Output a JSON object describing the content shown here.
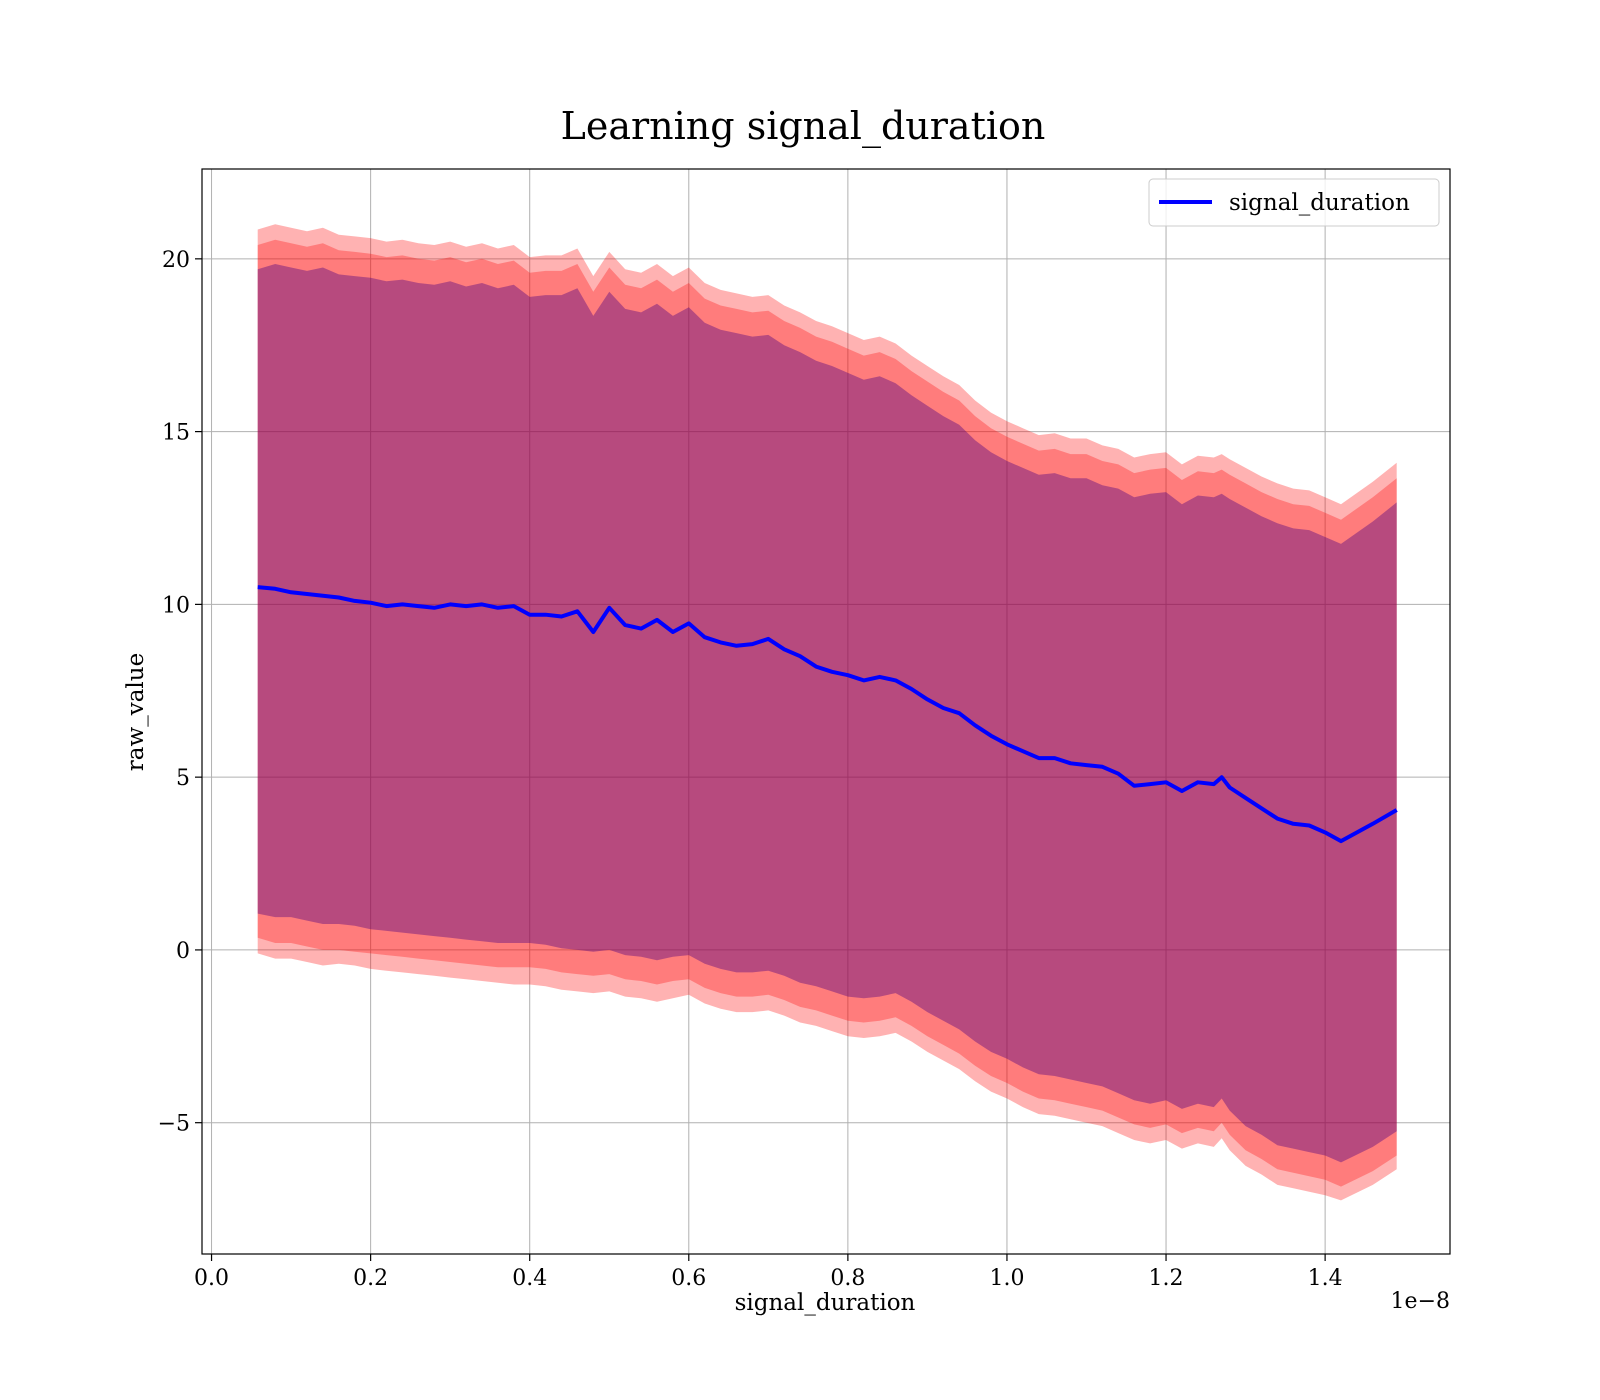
{
  "chart_data": {
    "type": "line",
    "title": "Learning signal_duration",
    "xlabel": "signal_duration",
    "ylabel": "raw_value",
    "x_offset_text": "1e−8",
    "x_ticks": [
      0.0,
      0.2,
      0.4,
      0.6,
      0.8,
      1.0,
      1.2,
      1.4
    ],
    "x_tick_labels": [
      "0.0",
      "0.2",
      "0.4",
      "0.6",
      "0.8",
      "1.0",
      "1.2",
      "1.4"
    ],
    "y_ticks": [
      -5,
      0,
      5,
      10,
      15,
      20
    ],
    "y_tick_labels": [
      "−5",
      "0",
      "5",
      "10",
      "15",
      "20"
    ],
    "xlim": [
      -0.012,
      1.557
    ],
    "ylim": [
      -8.8,
      22.6
    ],
    "grid": true,
    "legend": {
      "position": "top-right",
      "entries": [
        "signal_duration"
      ]
    },
    "series": [
      {
        "name": "signal_duration",
        "color": "#0000ff",
        "x": [
          0.058,
          0.08,
          0.1,
          0.12,
          0.14,
          0.16,
          0.18,
          0.2,
          0.22,
          0.24,
          0.26,
          0.28,
          0.3,
          0.32,
          0.34,
          0.36,
          0.38,
          0.4,
          0.42,
          0.44,
          0.46,
          0.48,
          0.5,
          0.52,
          0.54,
          0.56,
          0.58,
          0.6,
          0.62,
          0.64,
          0.66,
          0.68,
          0.7,
          0.72,
          0.74,
          0.76,
          0.78,
          0.8,
          0.82,
          0.84,
          0.86,
          0.88,
          0.9,
          0.92,
          0.94,
          0.96,
          0.98,
          1.0,
          1.02,
          1.04,
          1.06,
          1.08,
          1.1,
          1.12,
          1.14,
          1.16,
          1.18,
          1.2,
          1.22,
          1.24,
          1.26,
          1.27,
          1.28,
          1.3,
          1.32,
          1.34,
          1.36,
          1.38,
          1.4,
          1.42,
          1.46,
          1.49
        ],
        "y": [
          10.5,
          10.45,
          10.35,
          10.3,
          10.25,
          10.2,
          10.1,
          10.05,
          9.95,
          10.0,
          9.95,
          9.9,
          10.0,
          9.95,
          10.0,
          9.9,
          9.95,
          9.7,
          9.7,
          9.65,
          9.8,
          9.2,
          9.9,
          9.4,
          9.3,
          9.55,
          9.2,
          9.45,
          9.05,
          8.9,
          8.8,
          8.85,
          9.0,
          8.7,
          8.5,
          8.2,
          8.05,
          7.95,
          7.8,
          7.9,
          7.8,
          7.55,
          7.25,
          7.0,
          6.85,
          6.5,
          6.2,
          5.95,
          5.75,
          5.55,
          5.55,
          5.4,
          5.35,
          5.3,
          5.1,
          4.75,
          4.8,
          4.85,
          4.6,
          4.85,
          4.8,
          5.0,
          4.7,
          4.4,
          4.1,
          3.8,
          3.65,
          3.6,
          3.4,
          3.15,
          3.65,
          4.05
        ]
      }
    ],
    "bands": [
      {
        "color": "#ff0000",
        "opacity": 0.3,
        "lower": [
          -0.1,
          -0.25,
          -0.25,
          -0.35,
          -0.45,
          -0.4,
          -0.45,
          -0.55,
          -0.6,
          -0.65,
          -0.7,
          -0.75,
          -0.8,
          -0.85,
          -0.9,
          -0.95,
          -1.0,
          -1.0,
          -1.05,
          -1.15,
          -1.2,
          -1.25,
          -1.2,
          -1.35,
          -1.4,
          -1.5,
          -1.4,
          -1.3,
          -1.55,
          -1.7,
          -1.8,
          -1.8,
          -1.75,
          -1.9,
          -2.1,
          -2.2,
          -2.35,
          -2.5,
          -2.55,
          -2.5,
          -2.4,
          -2.65,
          -2.95,
          -3.2,
          -3.45,
          -3.8,
          -4.1,
          -4.3,
          -4.55,
          -4.75,
          -4.8,
          -4.9,
          -5.0,
          -5.1,
          -5.3,
          -5.5,
          -5.6,
          -5.5,
          -5.75,
          -5.6,
          -5.7,
          -5.45,
          -5.8,
          -6.25,
          -6.5,
          -6.8,
          -6.9,
          -7.0,
          -7.1,
          -7.25,
          -6.8,
          -6.35
        ],
        "upper": [
          20.85,
          21.0,
          20.9,
          20.8,
          20.9,
          20.7,
          20.65,
          20.6,
          20.5,
          20.55,
          20.45,
          20.4,
          20.5,
          20.35,
          20.45,
          20.3,
          20.4,
          20.05,
          20.1,
          20.1,
          20.3,
          19.5,
          20.2,
          19.7,
          19.6,
          19.85,
          19.5,
          19.75,
          19.3,
          19.1,
          19.0,
          18.9,
          18.95,
          18.65,
          18.45,
          18.2,
          18.05,
          17.85,
          17.65,
          17.75,
          17.55,
          17.2,
          16.9,
          16.6,
          16.35,
          15.9,
          15.55,
          15.3,
          15.1,
          14.9,
          14.95,
          14.8,
          14.8,
          14.6,
          14.5,
          14.25,
          14.35,
          14.4,
          14.05,
          14.3,
          14.25,
          14.35,
          14.2,
          13.95,
          13.7,
          13.5,
          13.35,
          13.3,
          13.1,
          12.9,
          13.55,
          14.1
        ]
      },
      {
        "color": "#ff0000",
        "opacity": 0.3,
        "lower": [
          0.35,
          0.2,
          0.2,
          0.1,
          0.0,
          0.0,
          -0.05,
          -0.1,
          -0.15,
          -0.2,
          -0.25,
          -0.3,
          -0.35,
          -0.4,
          -0.45,
          -0.5,
          -0.5,
          -0.5,
          -0.55,
          -0.65,
          -0.7,
          -0.75,
          -0.7,
          -0.85,
          -0.9,
          -1.0,
          -0.9,
          -0.85,
          -1.1,
          -1.25,
          -1.35,
          -1.35,
          -1.3,
          -1.45,
          -1.65,
          -1.75,
          -1.9,
          -2.05,
          -2.1,
          -2.05,
          -1.95,
          -2.2,
          -2.5,
          -2.75,
          -3.0,
          -3.35,
          -3.65,
          -3.85,
          -4.1,
          -4.3,
          -4.35,
          -4.45,
          -4.55,
          -4.65,
          -4.85,
          -5.05,
          -5.15,
          -5.05,
          -5.3,
          -5.15,
          -5.25,
          -5.0,
          -5.35,
          -5.8,
          -6.05,
          -6.35,
          -6.45,
          -6.55,
          -6.65,
          -6.85,
          -6.4,
          -5.95
        ],
        "upper": [
          20.4,
          20.55,
          20.45,
          20.35,
          20.45,
          20.25,
          20.2,
          20.15,
          20.05,
          20.1,
          20.0,
          19.95,
          20.05,
          19.9,
          20.0,
          19.85,
          19.95,
          19.6,
          19.65,
          19.65,
          19.85,
          19.05,
          19.75,
          19.25,
          19.15,
          19.4,
          19.05,
          19.3,
          18.85,
          18.65,
          18.55,
          18.45,
          18.5,
          18.2,
          18.0,
          17.75,
          17.6,
          17.4,
          17.2,
          17.3,
          17.1,
          16.75,
          16.45,
          16.15,
          15.9,
          15.45,
          15.1,
          14.85,
          14.65,
          14.45,
          14.5,
          14.35,
          14.35,
          14.15,
          14.05,
          13.8,
          13.9,
          13.95,
          13.6,
          13.85,
          13.8,
          13.9,
          13.75,
          13.5,
          13.25,
          13.05,
          12.9,
          12.85,
          12.65,
          12.45,
          13.1,
          13.65
        ]
      },
      {
        "color": "#4b0082",
        "opacity": 0.4,
        "lower": [
          1.05,
          0.95,
          0.95,
          0.85,
          0.75,
          0.75,
          0.7,
          0.6,
          0.55,
          0.5,
          0.45,
          0.4,
          0.35,
          0.3,
          0.25,
          0.2,
          0.2,
          0.2,
          0.15,
          0.05,
          0.0,
          -0.05,
          0.0,
          -0.15,
          -0.2,
          -0.3,
          -0.2,
          -0.15,
          -0.4,
          -0.55,
          -0.65,
          -0.65,
          -0.6,
          -0.75,
          -0.95,
          -1.05,
          -1.2,
          -1.35,
          -1.4,
          -1.35,
          -1.25,
          -1.5,
          -1.8,
          -2.05,
          -2.3,
          -2.65,
          -2.95,
          -3.15,
          -3.4,
          -3.6,
          -3.65,
          -3.75,
          -3.85,
          -3.95,
          -4.15,
          -4.35,
          -4.45,
          -4.35,
          -4.6,
          -4.45,
          -4.55,
          -4.3,
          -4.65,
          -5.1,
          -5.35,
          -5.65,
          -5.75,
          -5.85,
          -5.95,
          -6.15,
          -5.7,
          -5.25
        ],
        "upper": [
          19.7,
          19.85,
          19.75,
          19.65,
          19.75,
          19.55,
          19.5,
          19.45,
          19.35,
          19.4,
          19.3,
          19.25,
          19.35,
          19.2,
          19.3,
          19.15,
          19.25,
          18.9,
          18.95,
          18.95,
          19.15,
          18.35,
          19.05,
          18.55,
          18.45,
          18.7,
          18.35,
          18.6,
          18.15,
          17.95,
          17.85,
          17.75,
          17.8,
          17.5,
          17.3,
          17.05,
          16.9,
          16.7,
          16.5,
          16.6,
          16.4,
          16.05,
          15.75,
          15.45,
          15.2,
          14.75,
          14.4,
          14.15,
          13.95,
          13.75,
          13.8,
          13.65,
          13.65,
          13.45,
          13.35,
          13.1,
          13.2,
          13.25,
          12.9,
          13.15,
          13.1,
          13.2,
          13.05,
          12.8,
          12.55,
          12.35,
          12.2,
          12.15,
          11.95,
          11.75,
          12.4,
          12.95
        ]
      }
    ]
  }
}
